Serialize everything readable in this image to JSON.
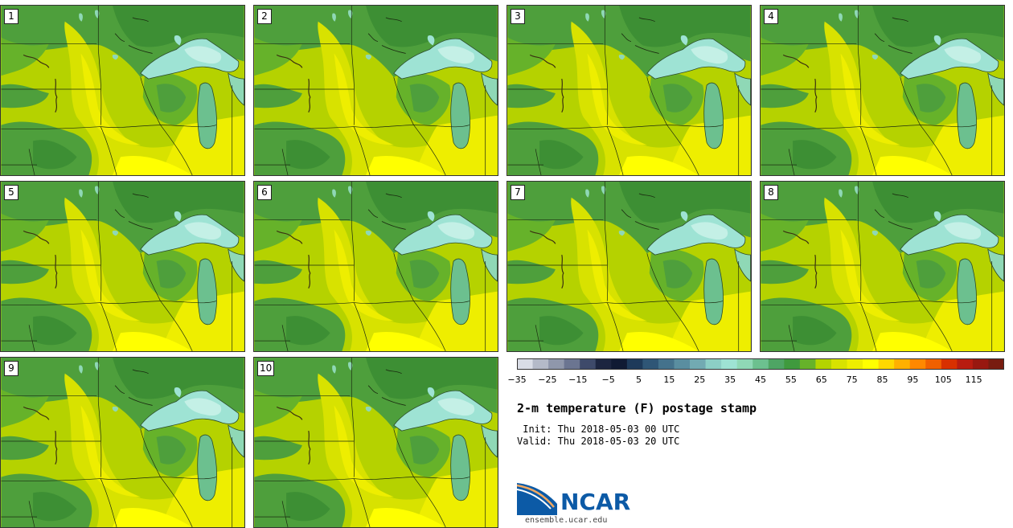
{
  "figure": {
    "title": "2-m temperature (F) postage stamp",
    "init": " Init: Thu 2018-05-03 00 UTC",
    "valid": "Valid: Thu 2018-05-03 20 UTC"
  },
  "panels": [
    "1",
    "2",
    "3",
    "4",
    "5",
    "6",
    "7",
    "8",
    "9",
    "10"
  ],
  "colorbar": {
    "tick_labels": [
      "−35",
      "−25",
      "−15",
      "−5",
      "5",
      "15",
      "25",
      "35",
      "45",
      "55",
      "65",
      "75",
      "85",
      "95",
      "105",
      "115"
    ],
    "range": [
      -35,
      120
    ],
    "step": 5,
    "colors": [
      "#d9dde6",
      "#b4bac8",
      "#8f97ab",
      "#6b7591",
      "#3e4a6a",
      "#1c2540",
      "#101a33",
      "#1e3a5a",
      "#2f5676",
      "#44728c",
      "#5a8ea0",
      "#72aab2",
      "#8ccfc6",
      "#9ee3d4",
      "#8fd8b6",
      "#6cc08f",
      "#4ea564",
      "#3f9a3e",
      "#66b22a",
      "#b4d400",
      "#d8e200",
      "#eeee00",
      "#ffff00",
      "#ffd800",
      "#ffb000",
      "#ff8800",
      "#f06000",
      "#d83000",
      "#b81c10",
      "#981810",
      "#781c10"
    ]
  },
  "branding": {
    "logo_text": "NCAR",
    "site": "ensemble.ucar.edu"
  }
}
